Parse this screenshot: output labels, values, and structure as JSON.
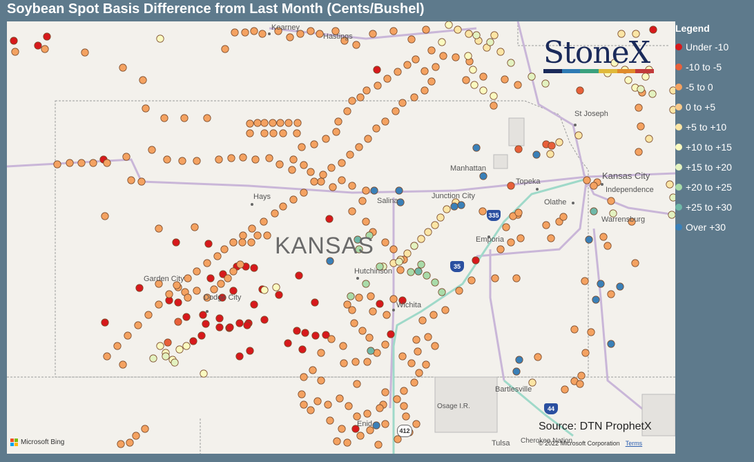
{
  "title": "Soybean Spot Basis Difference from Last Month (Cents/Bushel)",
  "legend": {
    "title": "Legend",
    "items": [
      {
        "label": "Under -10",
        "color": "#d7191c"
      },
      {
        "label": "-10 to -5",
        "color": "#e8603a"
      },
      {
        "label": "-5 to 0",
        "color": "#f4a261"
      },
      {
        "label": "0 to +5",
        "color": "#f8c98b"
      },
      {
        "label": "+5 to +10",
        "color": "#fbe5a5"
      },
      {
        "label": "+10 to +15",
        "color": "#fafac0"
      },
      {
        "label": "+15 to +20",
        "color": "#e3f2c0"
      },
      {
        "label": "+20 to +25",
        "color": "#a9dba9"
      },
      {
        "label": "+25 to +30",
        "color": "#6fb8a8"
      },
      {
        "label": "Over +30",
        "color": "#3a80b8"
      }
    ]
  },
  "map": {
    "state_label": "KANSAS",
    "cities": [
      "Kearney",
      "Hastings",
      "St Joseph",
      "Manhattan",
      "Kansas City",
      "Independence",
      "Topeka",
      "Olathe",
      "Junction City",
      "Salina",
      "Hays",
      "Emporia",
      "Warrensburg",
      "Garden City",
      "Dodge City",
      "Hutchinson",
      "Wichita",
      "Bartlesville",
      "Osage I.R.",
      "Enid",
      "Tulsa",
      "Cherokee Nation"
    ],
    "highways": [
      "335",
      "35",
      "44",
      "412"
    ]
  },
  "logo": {
    "text": "StoneX",
    "bar_colors": [
      "#1a2a5a",
      "#2e7bb4",
      "#3aa17e",
      "#e0b93a",
      "#e08a2a",
      "#c23a3a"
    ]
  },
  "source": "Source: DTN ProphetX",
  "copyright": "© 2022 Microsoft Corporation",
  "terms": "Terms",
  "bing": "Microsoft Bing"
}
